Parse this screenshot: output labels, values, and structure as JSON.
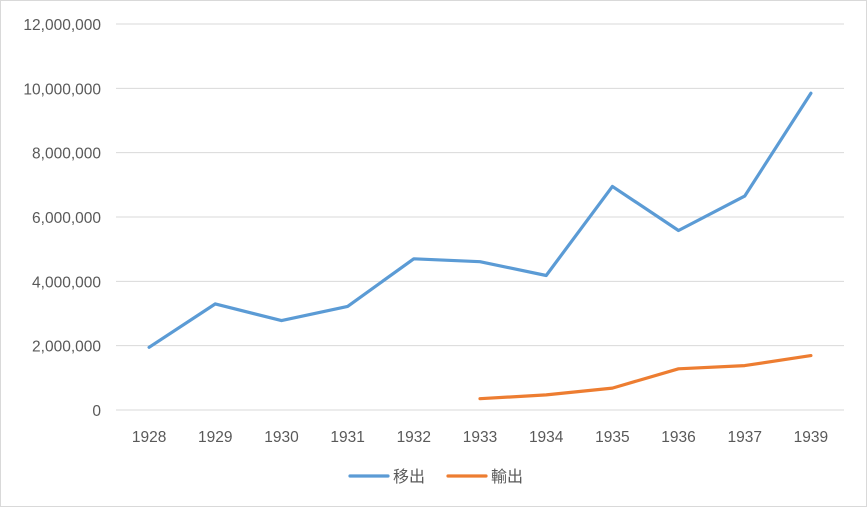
{
  "chart_data": {
    "type": "line",
    "title": "",
    "xlabel": "",
    "ylabel": "",
    "categories": [
      "1928",
      "1929",
      "1930",
      "1931",
      "1932",
      "1933",
      "1934",
      "1935",
      "1936",
      "1937",
      "1939"
    ],
    "ylim": [
      0,
      12000000
    ],
    "yticks": [
      0,
      2000000,
      4000000,
      6000000,
      8000000,
      10000000,
      12000000
    ],
    "ytick_labels": [
      "0",
      "2,000,000",
      "4,000,000",
      "6,000,000",
      "8,000,000",
      "10,000,000",
      "12,000,000"
    ],
    "grid": true,
    "legend_position": "bottom",
    "series": [
      {
        "name": "移出",
        "color": "#5B9BD5",
        "values": [
          1950000,
          3300000,
          2780000,
          3220000,
          4700000,
          4610000,
          4180000,
          6950000,
          5580000,
          6650000,
          9850000
        ]
      },
      {
        "name": "輸出",
        "color": "#ED7D31",
        "values": [
          null,
          null,
          null,
          null,
          null,
          350000,
          470000,
          680000,
          1280000,
          1380000,
          1690000
        ]
      }
    ]
  }
}
